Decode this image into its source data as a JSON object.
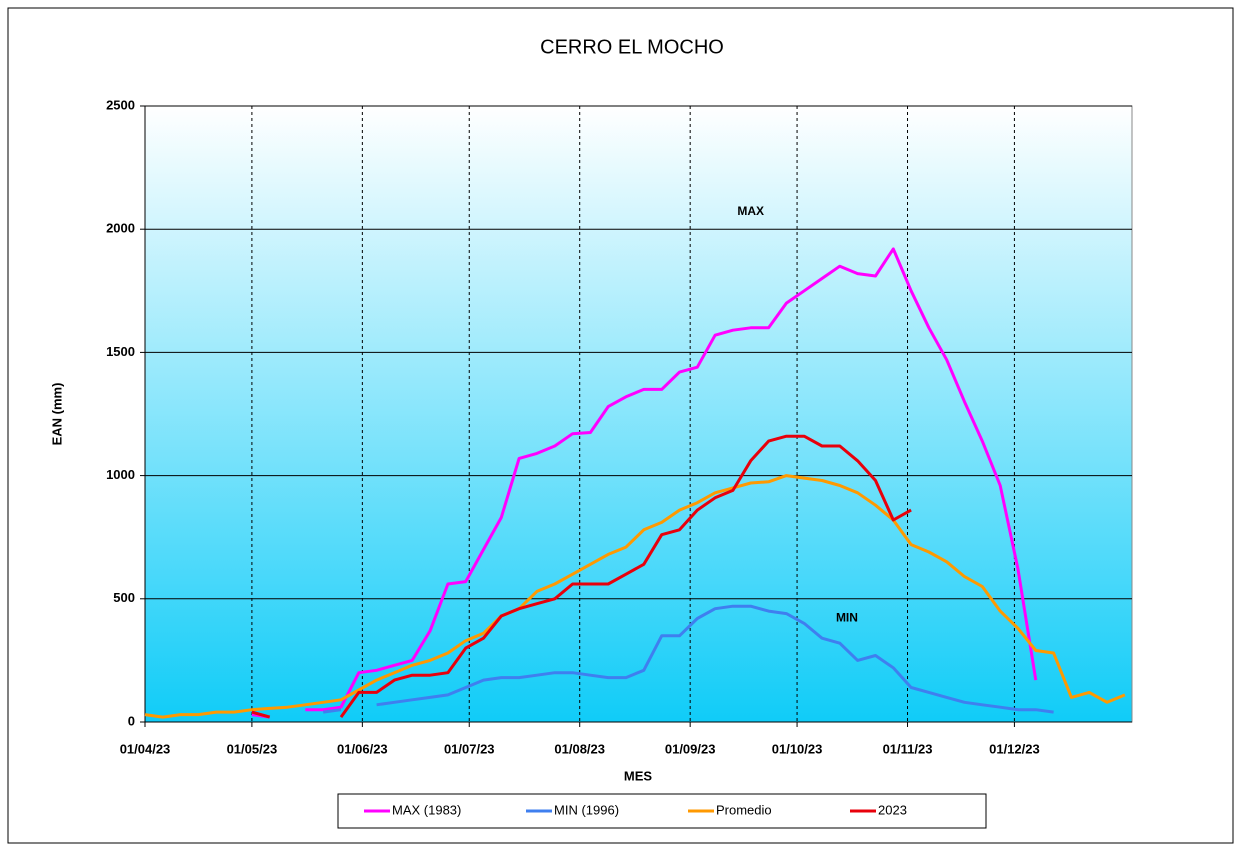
{
  "chart_data": {
    "type": "line",
    "title": "CERRO EL MOCHO",
    "x_label": "MES",
    "y_label": "EAN (mm)",
    "x": [
      "01/04/23",
      "06/04/23",
      "11/04/23",
      "16/04/23",
      "21/04/23",
      "26/04/23",
      "01/05/23",
      "06/05/23",
      "11/05/23",
      "16/05/23",
      "21/05/23",
      "26/05/23",
      "31/05/23",
      "05/06/23",
      "10/06/23",
      "15/06/23",
      "20/06/23",
      "25/06/23",
      "30/06/23",
      "05/07/23",
      "10/07/23",
      "15/07/23",
      "20/07/23",
      "25/07/23",
      "30/07/23",
      "04/08/23",
      "09/08/23",
      "14/08/23",
      "19/08/23",
      "24/08/23",
      "29/08/23",
      "03/09/23",
      "08/09/23",
      "13/09/23",
      "18/09/23",
      "23/09/23",
      "28/09/23",
      "03/10/23",
      "08/10/23",
      "13/10/23",
      "18/10/23",
      "23/10/23",
      "28/10/23",
      "02/11/23",
      "07/11/23",
      "12/11/23",
      "17/11/23",
      "22/11/23",
      "27/11/23",
      "02/12/23",
      "07/12/23",
      "12/12/23",
      "17/12/23",
      "22/12/23",
      "27/12/23",
      "01/01/24"
    ],
    "series": [
      {
        "name": "MAX (1983)",
        "color": "#ff00ff",
        "values": [
          null,
          null,
          null,
          null,
          null,
          null,
          30,
          20,
          null,
          50,
          50,
          60,
          200,
          210,
          230,
          250,
          370,
          560,
          570,
          700,
          830,
          1070,
          1090,
          1120,
          1170,
          1175,
          1280,
          1320,
          1350,
          1350,
          1420,
          1440,
          1570,
          1590,
          1600,
          1600,
          1700,
          1750,
          1800,
          1850,
          1820,
          1810,
          1920,
          1750,
          1600,
          1470,
          1300,
          1140,
          960,
          620,
          170,
          null,
          null,
          null,
          null,
          null
        ]
      },
      {
        "name": "MIN (1996)",
        "color": "#3f7fef",
        "values": [
          null,
          null,
          null,
          null,
          null,
          null,
          40,
          20,
          null,
          null,
          40,
          50,
          null,
          70,
          80,
          90,
          100,
          110,
          140,
          170,
          180,
          180,
          190,
          200,
          200,
          190,
          180,
          180,
          210,
          350,
          350,
          420,
          460,
          470,
          470,
          450,
          440,
          400,
          340,
          320,
          250,
          270,
          220,
          140,
          120,
          100,
          80,
          70,
          60,
          50,
          50,
          40,
          null,
          null,
          null,
          null
        ]
      },
      {
        "name": "Promedio",
        "color": "#ff9900",
        "values": [
          30,
          20,
          30,
          30,
          40,
          40,
          50,
          55,
          60,
          70,
          80,
          90,
          130,
          170,
          200,
          230,
          250,
          280,
          330,
          360,
          430,
          460,
          530,
          560,
          600,
          640,
          680,
          710,
          780,
          810,
          860,
          890,
          930,
          950,
          970,
          975,
          1000,
          990,
          980,
          960,
          930,
          880,
          820,
          720,
          690,
          650,
          590,
          550,
          450,
          380,
          290,
          280,
          100,
          120,
          80,
          110
        ]
      },
      {
        "name": "2023",
        "color": "#e8000b",
        "values": [
          null,
          null,
          null,
          null,
          null,
          null,
          40,
          20,
          null,
          null,
          null,
          20,
          120,
          120,
          170,
          190,
          190,
          200,
          300,
          340,
          430,
          460,
          480,
          500,
          560,
          560,
          560,
          600,
          640,
          760,
          780,
          860,
          910,
          940,
          1060,
          1140,
          1160,
          1160,
          1120,
          1120,
          1060,
          980,
          820,
          860,
          null,
          null,
          null,
          null,
          null,
          null,
          null,
          null,
          null,
          null,
          null,
          null
        ]
      }
    ],
    "xlim": [
      "01/04/23",
      "03/01/24"
    ],
    "xticks": [
      "01/04/23",
      "01/05/23",
      "01/06/23",
      "01/07/23",
      "01/08/23",
      "01/09/23",
      "01/10/23",
      "01/11/23",
      "01/12/23"
    ],
    "ylim": [
      0,
      2500
    ],
    "yticks": [
      0,
      500,
      1000,
      1500,
      2000,
      2500
    ],
    "grid": true,
    "annotations": [
      {
        "text": "MAX",
        "x": "18/09/23",
        "y": 2070,
        "color": "#ff00ff"
      },
      {
        "text": "MIN",
        "x": "15/10/23",
        "y": 420,
        "color": "#3f7fef"
      }
    ]
  }
}
